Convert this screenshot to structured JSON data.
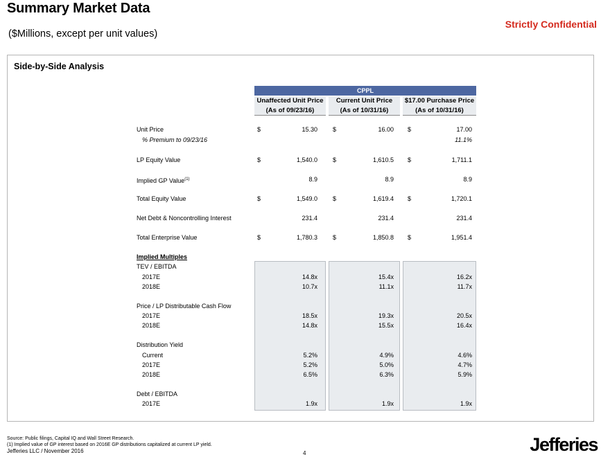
{
  "header": {
    "title": "Summary Market Data",
    "subtitle": "($Millions, except per unit values)",
    "confidential": "Strictly Confidential"
  },
  "panel": {
    "title": "Side-by-Side Analysis",
    "group_header": "CPPL",
    "columns": [
      {
        "line1": "Unaffected Unit Price",
        "line2": "(As of 09/23/16)"
      },
      {
        "line1": "Current Unit Price",
        "line2": "(As of 10/31/16)"
      },
      {
        "line1": "$17.00 Purchase Price",
        "line2": "(As of 10/31/16)"
      }
    ]
  },
  "rows": {
    "unit_price": {
      "label": "Unit Price",
      "values": [
        "15.30",
        "16.00",
        "17.00"
      ]
    },
    "premium": {
      "label": "% Premium to 09/23/16",
      "values": [
        "",
        "",
        "11.1%"
      ]
    },
    "lp_equity": {
      "label": "LP Equity Value",
      "values": [
        "1,540.0",
        "1,610.5",
        "1,711.1"
      ]
    },
    "implied_gp": {
      "label": "Implied GP Value",
      "footnote": "(1)",
      "values": [
        "8.9",
        "8.9",
        "8.9"
      ]
    },
    "total_equity": {
      "label": "Total Equity Value",
      "values": [
        "1,549.0",
        "1,619.4",
        "1,720.1"
      ]
    },
    "net_debt": {
      "label": "Net Debt & Noncontrolling Interest",
      "values": [
        "231.4",
        "231.4",
        "231.4"
      ]
    },
    "tev": {
      "label": "Total Enterprise Value",
      "values": [
        "1,780.3",
        "1,850.8",
        "1,951.4"
      ]
    },
    "currency": "$"
  },
  "multiples": {
    "title": "Implied Multiples",
    "tev_ebitda": {
      "label": "TEV / EBITDA",
      "rows": [
        {
          "label": "2017E",
          "values": [
            "14.8x",
            "15.4x",
            "16.2x"
          ]
        },
        {
          "label": "2018E",
          "values": [
            "10.7x",
            "11.1x",
            "11.7x"
          ]
        }
      ]
    },
    "price_dcf": {
      "label": "Price / LP Distributable Cash Flow",
      "rows": [
        {
          "label": "2017E",
          "values": [
            "18.5x",
            "19.3x",
            "20.5x"
          ]
        },
        {
          "label": "2018E",
          "values": [
            "14.8x",
            "15.5x",
            "16.4x"
          ]
        }
      ]
    },
    "dist_yield": {
      "label": "Distribution Yield",
      "rows": [
        {
          "label": "Current",
          "values": [
            "5.2%",
            "4.9%",
            "4.6%"
          ]
        },
        {
          "label": "2017E",
          "values": [
            "5.2%",
            "5.0%",
            "4.7%"
          ]
        },
        {
          "label": "2018E",
          "values": [
            "6.5%",
            "6.3%",
            "5.9%"
          ]
        }
      ]
    },
    "debt_ebitda": {
      "label": "Debt / EBITDA",
      "rows": [
        {
          "label": "2017E",
          "values": [
            "1.9x",
            "1.9x",
            "1.9x"
          ]
        }
      ]
    }
  },
  "footer": {
    "source": "Source: Public filings, Capital IQ and Wall Street Research.",
    "note": "(1)    Implied value of GP interest based on 2016E GP distributions capitalized at current LP yield.",
    "company": "Jefferies LLC  /  November 2016",
    "page": "4",
    "logo": "Jefferies"
  },
  "colors": {
    "confidential_red": "#d42a1e",
    "header_blue": "#4d67a1",
    "shade_gray": "#e9ecef"
  }
}
